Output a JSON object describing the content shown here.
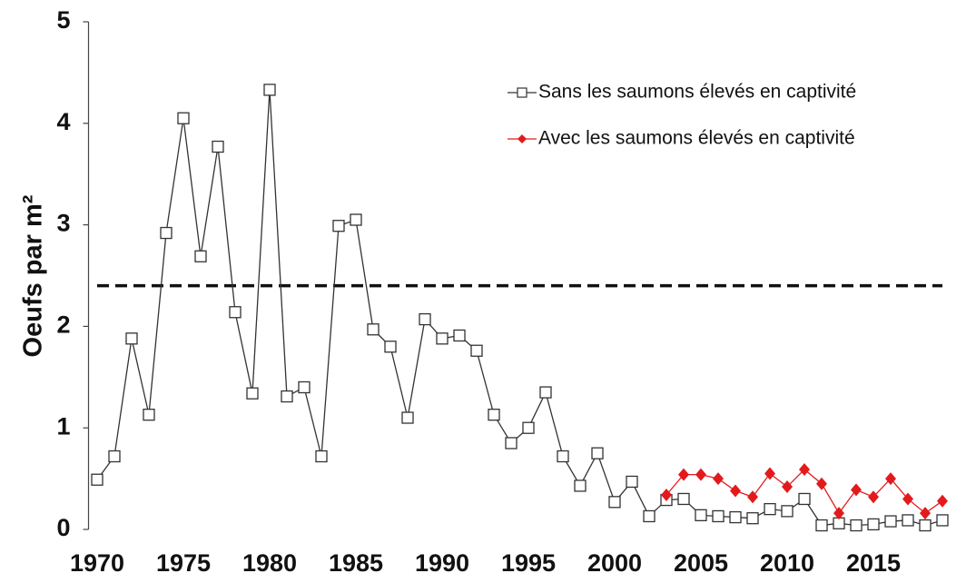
{
  "chart_data": {
    "type": "line",
    "y_label": "Oeufs par m²",
    "x": [
      1970,
      1971,
      1972,
      1973,
      1974,
      1975,
      1976,
      1977,
      1978,
      1979,
      1980,
      1981,
      1982,
      1983,
      1984,
      1985,
      1986,
      1987,
      1988,
      1989,
      1990,
      1991,
      1992,
      1993,
      1994,
      1995,
      1996,
      1997,
      1998,
      1999,
      2000,
      2001,
      2002,
      2003,
      2004,
      2005,
      2006,
      2007,
      2008,
      2009,
      2010,
      2011,
      2012,
      2013,
      2014,
      2015,
      2016,
      2017,
      2018,
      2019
    ],
    "series": [
      {
        "name": "Sans les saumons élevés en captivité",
        "color": "#333333",
        "marker": "square",
        "values": [
          0.49,
          0.72,
          1.88,
          1.13,
          2.92,
          4.05,
          2.69,
          3.77,
          2.14,
          1.34,
          4.33,
          1.31,
          1.4,
          0.72,
          2.99,
          3.05,
          1.97,
          1.8,
          1.1,
          2.07,
          1.88,
          1.91,
          1.76,
          1.13,
          0.85,
          1.0,
          1.35,
          0.72,
          0.43,
          0.75,
          0.27,
          0.47,
          0.13,
          0.29,
          0.3,
          0.14,
          0.13,
          0.12,
          0.11,
          0.2,
          0.18,
          0.3,
          0.04,
          0.06,
          0.04,
          0.05,
          0.08,
          0.09,
          0.04,
          0.09
        ]
      },
      {
        "name": "Avec les saumons élevés en captivité",
        "color": "#e31a1c",
        "marker": "diamond",
        "values": [
          null,
          null,
          null,
          null,
          null,
          null,
          null,
          null,
          null,
          null,
          null,
          null,
          null,
          null,
          null,
          null,
          null,
          null,
          null,
          null,
          null,
          null,
          null,
          null,
          null,
          null,
          null,
          null,
          null,
          null,
          null,
          null,
          null,
          0.34,
          0.54,
          0.54,
          0.5,
          0.38,
          0.32,
          0.55,
          0.42,
          0.59,
          0.45,
          0.16,
          0.39,
          0.32,
          0.5,
          0.3,
          0.16,
          0.28
        ]
      }
    ],
    "reference_line": 2.4,
    "xlim": [
      1969.5,
      2019.5
    ],
    "xticks": [
      1970,
      1975,
      1980,
      1985,
      1990,
      1995,
      2000,
      2005,
      2010,
      2015
    ],
    "ylim": [
      0,
      5
    ],
    "yticks": [
      0,
      1,
      2,
      3,
      4,
      5
    ],
    "legend": "upper-right",
    "grid": false
  }
}
